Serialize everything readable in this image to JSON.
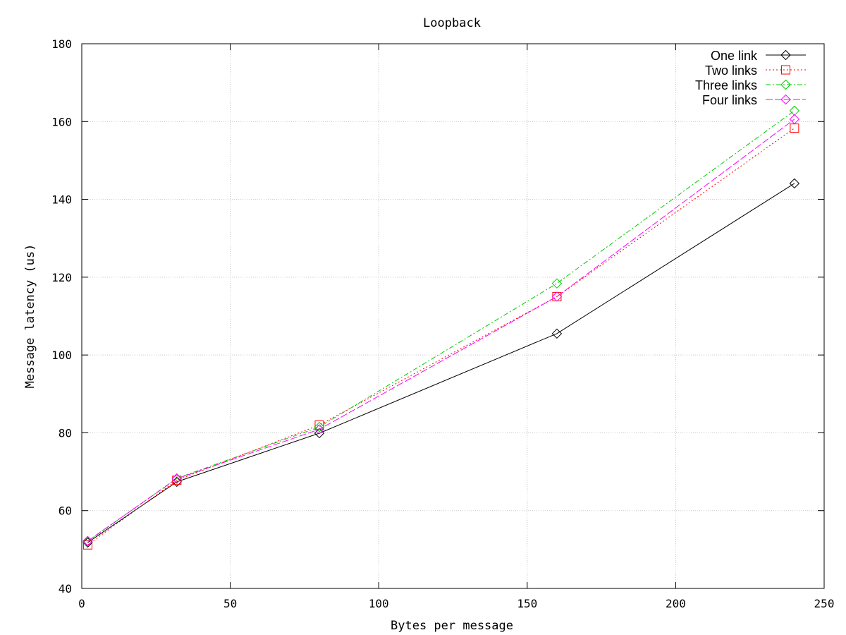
{
  "chart_data": {
    "type": "line",
    "title": "Loopback",
    "xlabel": "Bytes per message",
    "ylabel": "Message latency (us)",
    "xlim": [
      0,
      250
    ],
    "ylim": [
      40,
      180
    ],
    "xticks": [
      0,
      50,
      100,
      150,
      200,
      250
    ],
    "yticks": [
      40,
      60,
      80,
      100,
      120,
      140,
      160,
      180
    ],
    "grid": true,
    "legend_position": "top-right",
    "series": [
      {
        "name": "One link",
        "color": "#000000",
        "marker": "diamond",
        "dash": "",
        "x": [
          2,
          32,
          80,
          160,
          240
        ],
        "y": [
          51.8,
          67.4,
          79.9,
          105.5,
          144.1
        ]
      },
      {
        "name": "Two links",
        "color": "#ff0000",
        "marker": "square",
        "dash": "2 3",
        "x": [
          2,
          32,
          80,
          160,
          240
        ],
        "y": [
          51.2,
          67.8,
          82.0,
          115.0,
          158.3
        ]
      },
      {
        "name": "Three links",
        "color": "#00cc00",
        "marker": "diamond",
        "dash": "7 3 2 3",
        "x": [
          2,
          32,
          80,
          160,
          240
        ],
        "y": [
          52.1,
          68.3,
          81.5,
          118.4,
          162.8
        ]
      },
      {
        "name": "Four links",
        "color": "#ff00ff",
        "marker": "diamond",
        "dash": "10 3",
        "x": [
          2,
          32,
          80,
          160,
          240
        ],
        "y": [
          52.2,
          68.2,
          80.9,
          115.0,
          160.6
        ]
      }
    ]
  }
}
